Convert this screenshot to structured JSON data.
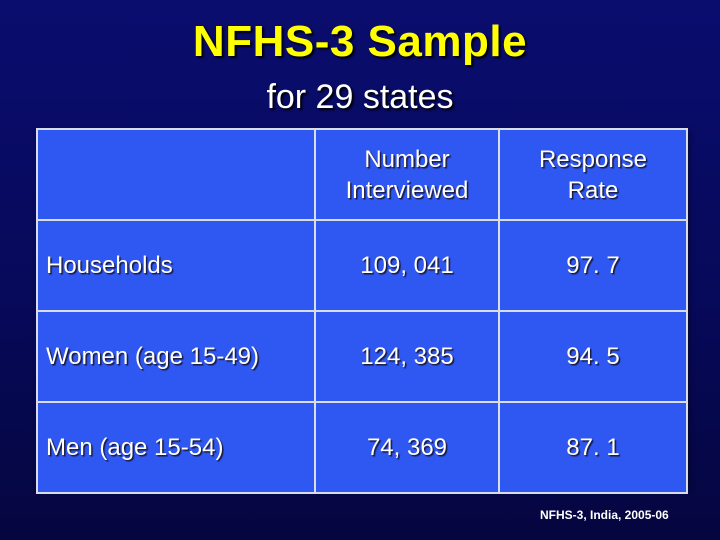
{
  "title": "NFHS-3 Sample",
  "subtitle": "for 29 states",
  "table": {
    "headers": {
      "corner": "",
      "col_number_line1": "Number",
      "col_number_line2": "Interviewed",
      "col_rate_line1": "Response",
      "col_rate_line2": "Rate"
    },
    "rows": [
      {
        "label": "Households",
        "number": "109, 041",
        "rate": "97. 7"
      },
      {
        "label": "Women (age 15-49)",
        "number": "124, 385",
        "rate": "94. 5"
      },
      {
        "label": "Men (age 15-54)",
        "number": "74, 369",
        "rate": "87. 1"
      }
    ]
  },
  "source": "NFHS-3, India, 2005-06",
  "colors": {
    "background": "#07095a",
    "title": "#ffff00",
    "table_fill": "#2f57f2"
  }
}
